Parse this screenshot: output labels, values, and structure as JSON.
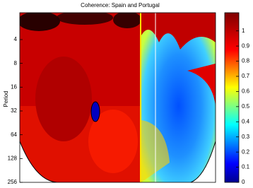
{
  "chart_data": {
    "type": "heatmap",
    "title": "Coherence: Spain and Portugal",
    "y_label": "Period",
    "ylim": [
      1.83,
      256
    ],
    "y_log": true,
    "y_reversed": true,
    "yticks": [
      4,
      8,
      16,
      32,
      64,
      128,
      256
    ],
    "colorbar": {
      "colormap": "jet",
      "lim": [
        0,
        1.12
      ],
      "ticks": [
        0,
        0.1,
        0.2,
        0.3,
        0.4,
        0.5,
        0.6,
        0.7,
        0.8,
        0.9,
        1
      ]
    }
  }
}
